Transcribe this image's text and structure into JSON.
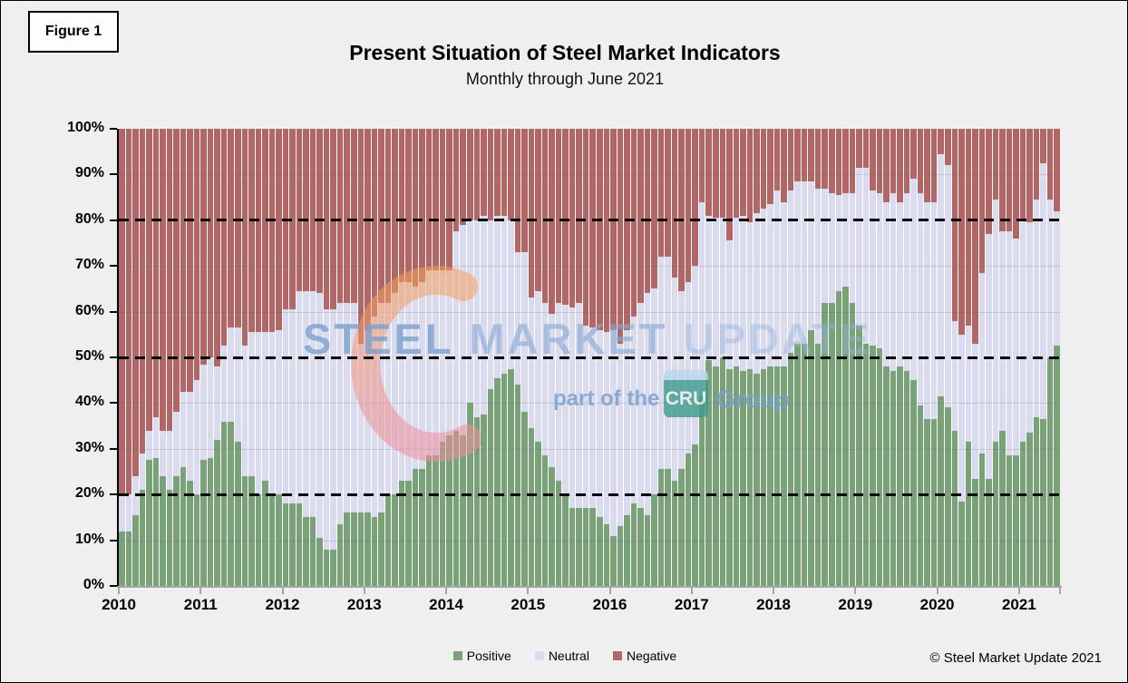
{
  "figure_label": "Figure 1",
  "title": "Present Situation of Steel Market Indicators",
  "subtitle": "Monthly through June 2021",
  "copyright": "© Steel Market Update 2021",
  "watermark": {
    "word1": "STEEL",
    "word2": "MARKET",
    "word3": "UPDATE",
    "tagline": "part of the",
    "cru_box": "CRU",
    "group": "Group"
  },
  "legend": [
    {
      "label": "Positive",
      "color": "#79a279"
    },
    {
      "label": "Neutral",
      "color": "#dbdbef"
    },
    {
      "label": "Negative",
      "color": "#b26767"
    }
  ],
  "colors": {
    "positive": "#79a279",
    "neutral": "#dbdbef",
    "negative": "#b26767",
    "background": "#efefef",
    "plot_gap": "#ffffff",
    "x_axis": "#a6a6a6",
    "y_axis": "#000000",
    "watermark_blue": "#7aa0cd",
    "cru_teal": "#3f9b8c"
  },
  "y_axis": {
    "tick_labels": [
      "0%",
      "10%",
      "20%",
      "30%",
      "40%",
      "50%",
      "60%",
      "70%",
      "80%",
      "90%",
      "100%"
    ],
    "dashed_lines_pct": [
      20,
      50,
      80
    ],
    "gridlines_pct": [
      10,
      30,
      40,
      60,
      70,
      90
    ]
  },
  "x_axis": {
    "year_labels": [
      "2010",
      "2011",
      "2012",
      "2013",
      "2014",
      "2015",
      "2016",
      "2017",
      "2018",
      "2019",
      "2020",
      "2021"
    ]
  },
  "chart_data": {
    "type": "bar",
    "stacked": true,
    "stack_total": 100,
    "title": "Present Situation of Steel Market Indicators",
    "subtitle": "Monthly through June 2021",
    "x": {
      "start": "2010-01",
      "end": "2021-06",
      "interval": "month",
      "count": 138
    },
    "ylim": [
      0,
      100
    ],
    "legend_position": "bottom",
    "series": [
      {
        "name": "Positive",
        "values": [
          12,
          12,
          15.5,
          21,
          27.5,
          28,
          24,
          21,
          24,
          26,
          23,
          20,
          27.5,
          28,
          32,
          36,
          36,
          31.5,
          24,
          24,
          20,
          23,
          20,
          20,
          18,
          18,
          18,
          15,
          15,
          10.5,
          8,
          8,
          13.5,
          16,
          16,
          16,
          16,
          15,
          16,
          20,
          20,
          23,
          23,
          25.5,
          25.5,
          28.5,
          28.5,
          31.5,
          33,
          34,
          33,
          40,
          37,
          37.5,
          43,
          45.5,
          46.5,
          47.5,
          44,
          38,
          34.5,
          31.5,
          28.5,
          26,
          23,
          20,
          17,
          17,
          17,
          17,
          15,
          13.5,
          11,
          13,
          15.5,
          18,
          17,
          15.5,
          20,
          25.5,
          25.5,
          23,
          25.5,
          29,
          31,
          41.5,
          49.5,
          48,
          50,
          47.5,
          48,
          47,
          47.5,
          46.5,
          47.5,
          48,
          48,
          48,
          51,
          53,
          53,
          56,
          53,
          62,
          62,
          64.5,
          65.5,
          62,
          57,
          53,
          52.5,
          52,
          48,
          47,
          48,
          47,
          45,
          39.5,
          36.5,
          36.5,
          41.5,
          39,
          34,
          18.5,
          31.5,
          23.5,
          29,
          23.5,
          31.5,
          34,
          28.5,
          28.5,
          31.5,
          33.5,
          37,
          36.5,
          50,
          52.5
        ]
      },
      {
        "name": "Neutral",
        "values": [
          8,
          8,
          8.5,
          8,
          6.5,
          9,
          10,
          13,
          14,
          16.5,
          19.5,
          25,
          21,
          22,
          16,
          16.5,
          20.5,
          25,
          28.5,
          31.5,
          35.5,
          32.5,
          35.5,
          36,
          42.5,
          42.5,
          46.5,
          49.5,
          49.5,
          53.5,
          52.5,
          52.5,
          48.5,
          46,
          46,
          37,
          40,
          44,
          46,
          42,
          44,
          43.5,
          43.5,
          40,
          41,
          40.5,
          40.5,
          37.5,
          36,
          43.5,
          46,
          40,
          43,
          43.5,
          37,
          35.5,
          34.5,
          32.5,
          29,
          35,
          28.5,
          33,
          33.5,
          33.5,
          39,
          41.5,
          44,
          45,
          40,
          39.5,
          41,
          42,
          45,
          40,
          40.5,
          41,
          45,
          48.5,
          45,
          46.5,
          46.5,
          44.5,
          39,
          37.5,
          39,
          42.5,
          31.5,
          32.5,
          30.5,
          28,
          32.5,
          34,
          32,
          35,
          35,
          35.5,
          38.5,
          36,
          35.5,
          35.5,
          35.5,
          32.5,
          34,
          25,
          24,
          21,
          20.5,
          24,
          34.5,
          38.5,
          34,
          34,
          36,
          39,
          36,
          39,
          44,
          46.5,
          47.5,
          47.5,
          53,
          53,
          24,
          36.5,
          25.5,
          29.5,
          39.5,
          53.5,
          53,
          43.5,
          49,
          47.5,
          48.5,
          46,
          47.5,
          56,
          34.5,
          29.5
        ]
      },
      {
        "name": "Negative",
        "values": [
          80,
          80,
          76,
          71,
          66,
          63,
          66,
          66,
          62,
          57.5,
          57.5,
          55,
          51.5,
          50,
          52,
          47.5,
          43.5,
          43.5,
          47.5,
          44.5,
          44.5,
          44.5,
          44.5,
          44,
          39.5,
          39.5,
          35.5,
          35.5,
          35.5,
          36,
          39.5,
          39.5,
          38,
          38,
          38,
          47,
          44,
          41,
          38,
          38,
          36,
          33.5,
          33.5,
          34.5,
          33.5,
          31,
          31,
          31,
          31,
          22.5,
          21,
          20,
          20,
          19,
          20,
          19,
          19,
          20,
          27,
          27,
          37,
          35.5,
          38,
          40.5,
          38,
          38.5,
          39,
          38,
          43,
          43.5,
          44,
          44.5,
          44,
          47,
          44,
          41,
          38,
          36,
          35,
          28,
          28,
          32.5,
          35.5,
          33.5,
          30,
          16,
          19,
          19.5,
          19.5,
          24.5,
          19.5,
          19,
          20.5,
          18.5,
          17.5,
          16.5,
          13.5,
          16,
          13.5,
          11.5,
          11.5,
          11.5,
          13,
          13,
          14,
          14.5,
          14,
          14,
          8.5,
          8.5,
          13.5,
          14,
          16,
          14,
          16,
          14,
          11,
          14,
          16,
          16,
          5.5,
          8,
          42,
          45,
          43,
          47,
          31.5,
          23,
          15.5,
          22.5,
          22.5,
          24,
          20,
          20.5,
          15.5,
          7.5,
          15.5,
          18
        ]
      }
    ]
  }
}
